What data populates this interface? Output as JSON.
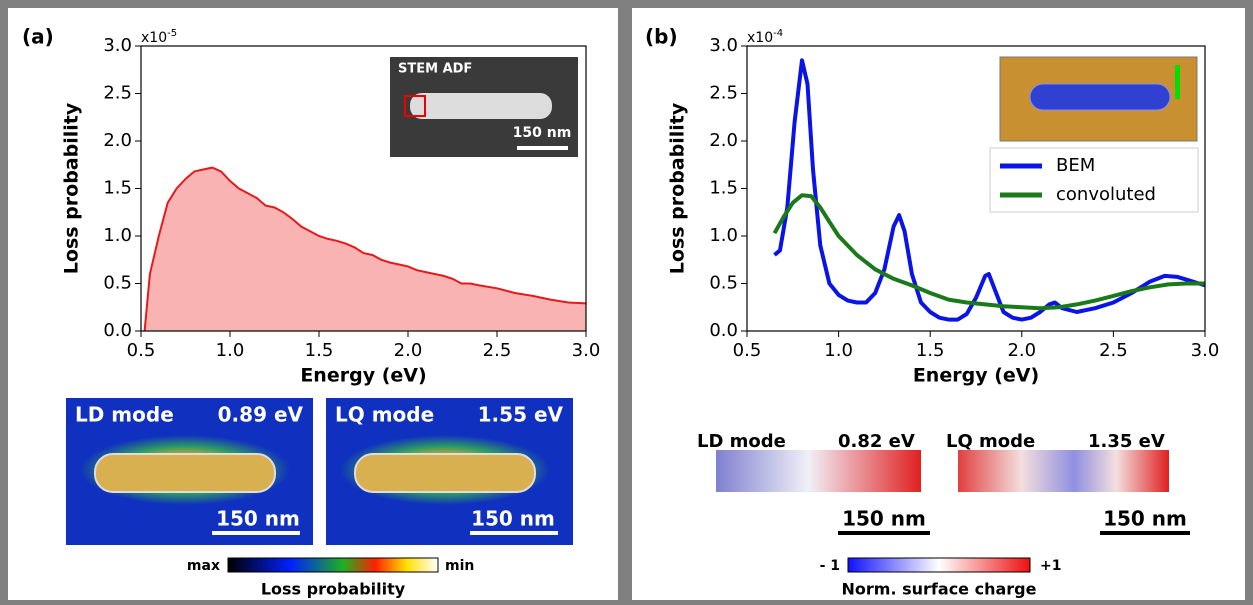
{
  "chart_data": [
    {
      "type": "area",
      "panel_label": "(a)",
      "xlabel": "Energy (eV)",
      "ylabel": "Loss probability",
      "y_multiplier": {
        "base": "x10",
        "exponent": "-5"
      },
      "xlim": [
        0.5,
        3.0
      ],
      "ylim": [
        0,
        3.0
      ],
      "xticks": [
        0.5,
        {
          "value": 1,
          "label": "1.0"
        },
        1.5,
        {
          "value": 2,
          "label": "2.0"
        },
        2.5,
        {
          "value": 3,
          "label": "3.0"
        }
      ],
      "yticks": [
        {
          "value": 0,
          "label": "0.0"
        },
        0.5,
        {
          "value": 1,
          "label": "1.0"
        },
        1.5,
        {
          "value": 2,
          "label": "2.0"
        },
        2.5,
        {
          "value": 3,
          "label": "3.0"
        }
      ],
      "color": "#e41a1c",
      "fill_color": "#f9b3b3",
      "x": [
        0.52,
        0.55,
        0.6,
        0.65,
        0.7,
        0.75,
        0.8,
        0.85,
        0.9,
        0.95,
        1.0,
        1.05,
        1.1,
        1.15,
        1.2,
        1.25,
        1.3,
        1.35,
        1.4,
        1.45,
        1.5,
        1.55,
        1.6,
        1.65,
        1.7,
        1.75,
        1.8,
        1.85,
        1.9,
        1.95,
        2.0,
        2.05,
        2.1,
        2.15,
        2.2,
        2.25,
        2.3,
        2.35,
        2.4,
        2.5,
        2.6,
        2.7,
        2.8,
        2.9,
        3.0
      ],
      "values": [
        0,
        0.6,
        1.0,
        1.35,
        1.5,
        1.6,
        1.68,
        1.7,
        1.72,
        1.68,
        1.58,
        1.5,
        1.45,
        1.4,
        1.32,
        1.3,
        1.25,
        1.18,
        1.1,
        1.05,
        1.0,
        0.97,
        0.95,
        0.92,
        0.88,
        0.82,
        0.8,
        0.75,
        0.72,
        0.7,
        0.68,
        0.64,
        0.62,
        0.6,
        0.58,
        0.55,
        0.5,
        0.5,
        0.48,
        0.45,
        0.4,
        0.37,
        0.33,
        0.3,
        0.29
      ],
      "inset_label": "STEM ADF",
      "inset_scale": "150 nm",
      "maps": [
        {
          "mode": "LD mode",
          "energy": "0.89 eV",
          "scale": "150 nm"
        },
        {
          "mode": "LQ mode",
          "energy": "1.55 eV",
          "scale": "150 nm"
        }
      ],
      "colorbar": {
        "left_label": "max",
        "right_label": "min",
        "title": "Loss probability"
      }
    },
    {
      "type": "line",
      "panel_label": "(b)",
      "xlabel": "Energy (eV)",
      "ylabel": "Loss probability",
      "y_multiplier": {
        "base": "x10",
        "exponent": "-4"
      },
      "xlim": [
        0.5,
        3.0
      ],
      "ylim": [
        0,
        3.0
      ],
      "xticks": [
        0.5,
        {
          "value": 1,
          "label": "1.0"
        },
        1.5,
        {
          "value": 2,
          "label": "2.0"
        },
        2.5,
        {
          "value": 3,
          "label": "3.0"
        }
      ],
      "yticks": [
        {
          "value": 0,
          "label": "0.0"
        },
        0.5,
        {
          "value": 1,
          "label": "1.0"
        },
        1.5,
        {
          "value": 2,
          "label": "2.0"
        },
        2.5,
        {
          "value": 3,
          "label": "3.0"
        }
      ],
      "series": [
        {
          "name": "BEM",
          "color": "#0a14e6",
          "x": [
            0.65,
            0.68,
            0.72,
            0.76,
            0.8,
            0.83,
            0.86,
            0.9,
            0.95,
            1.0,
            1.05,
            1.1,
            1.15,
            1.2,
            1.25,
            1.3,
            1.33,
            1.36,
            1.4,
            1.45,
            1.5,
            1.55,
            1.6,
            1.65,
            1.7,
            1.75,
            1.8,
            1.82,
            1.85,
            1.9,
            1.95,
            2.0,
            2.05,
            2.1,
            2.15,
            2.18,
            2.22,
            2.3,
            2.4,
            2.5,
            2.6,
            2.7,
            2.78,
            2.85,
            2.9,
            3.0
          ],
          "values": [
            0.8,
            0.85,
            1.3,
            2.2,
            2.85,
            2.6,
            1.7,
            0.9,
            0.5,
            0.38,
            0.32,
            0.3,
            0.3,
            0.4,
            0.65,
            1.1,
            1.22,
            1.05,
            0.6,
            0.3,
            0.2,
            0.14,
            0.12,
            0.12,
            0.18,
            0.35,
            0.58,
            0.6,
            0.45,
            0.2,
            0.14,
            0.12,
            0.14,
            0.2,
            0.28,
            0.3,
            0.24,
            0.2,
            0.24,
            0.3,
            0.4,
            0.52,
            0.58,
            0.57,
            0.54,
            0.48
          ]
        },
        {
          "name": "convoluted",
          "color": "#1a7a1a",
          "x": [
            0.65,
            0.7,
            0.75,
            0.8,
            0.85,
            0.9,
            0.95,
            1.0,
            1.1,
            1.2,
            1.3,
            1.4,
            1.5,
            1.6,
            1.7,
            1.8,
            1.9,
            2.0,
            2.1,
            2.2,
            2.3,
            2.4,
            2.5,
            2.6,
            2.7,
            2.8,
            2.9,
            3.0
          ],
          "values": [
            1.03,
            1.2,
            1.35,
            1.43,
            1.42,
            1.3,
            1.15,
            1.0,
            0.8,
            0.65,
            0.55,
            0.48,
            0.4,
            0.33,
            0.3,
            0.28,
            0.26,
            0.25,
            0.24,
            0.25,
            0.28,
            0.32,
            0.37,
            0.42,
            0.46,
            0.49,
            0.5,
            0.5
          ]
        }
      ],
      "maps": [
        {
          "mode": "LD mode",
          "energy": "0.82 eV",
          "scale": "150 nm"
        },
        {
          "mode": "LQ mode",
          "energy": "1.35 eV",
          "scale": "150 nm"
        }
      ],
      "colorbar": {
        "left_label": "- 1",
        "right_label": "+1",
        "title": "Norm. surface charge"
      }
    }
  ]
}
